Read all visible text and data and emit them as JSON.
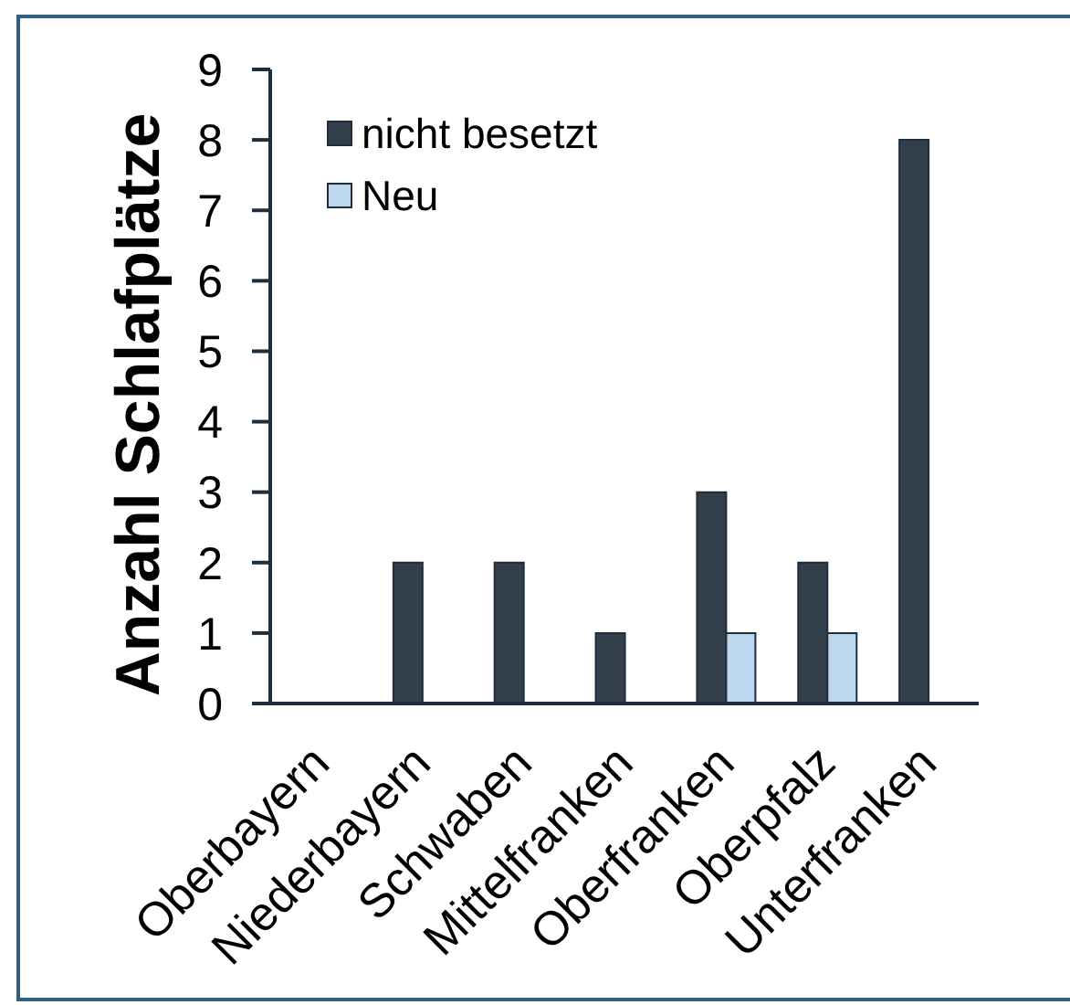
{
  "chart_data": {
    "type": "bar",
    "ylabel": "Anzahl Schlafplätze",
    "categories": [
      "Oberbayern",
      "Niederbayern",
      "Schwaben",
      "Mittelfranken",
      "Oberfranken",
      "Oberpfalz",
      "Unterfranken"
    ],
    "series": [
      {
        "name": "nicht besetzt",
        "color": "#333f4b",
        "values": [
          0,
          2,
          2,
          1,
          3,
          2,
          8
        ]
      },
      {
        "name": "Neu",
        "color": "#bdd7ee",
        "values": [
          0,
          0,
          0,
          0,
          1,
          1,
          0
        ]
      }
    ],
    "ylim": [
      0,
      9
    ],
    "yticks": [
      0,
      1,
      2,
      3,
      4,
      5,
      6,
      7,
      8,
      9
    ],
    "legend": "top left"
  }
}
